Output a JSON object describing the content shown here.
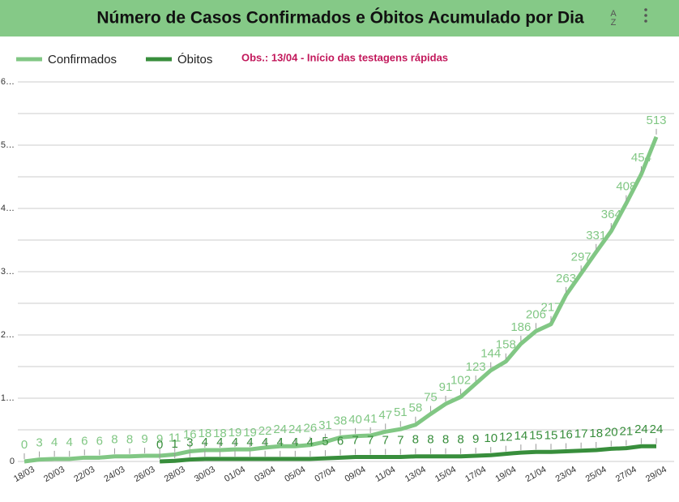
{
  "chart_data": {
    "type": "line",
    "title": "Número de Casos Confirmados e Óbitos Acumulado por Dia",
    "annotation": "Obs.: 13/04 - Início das testagens rápidas",
    "categories": [
      "18/03",
      null,
      "20/03",
      null,
      "22/03",
      null,
      "24/03",
      null,
      "26/03",
      null,
      "28/03",
      null,
      "30/03",
      null,
      "01/04",
      null,
      "03/04",
      null,
      "05/04",
      null,
      "07/04",
      null,
      "09/04",
      null,
      "11/04",
      null,
      "13/04",
      null,
      "15/04",
      null,
      "17/04",
      null,
      "19/04",
      null,
      "21/04",
      null,
      "23/04",
      null,
      "25/04",
      null,
      "27/04",
      null,
      "29/04"
    ],
    "series": [
      {
        "name": "Confirmados",
        "color": "#81c784",
        "values": [
          0,
          3,
          4,
          4,
          6,
          6,
          8,
          8,
          9,
          9,
          11,
          16,
          18,
          18,
          19,
          19,
          22,
          24,
          24,
          26,
          31,
          38,
          40,
          41,
          47,
          51,
          58,
          75,
          91,
          102,
          123,
          144,
          158,
          186,
          206,
          217,
          263,
          297,
          331,
          364,
          408,
          454,
          513
        ]
      },
      {
        "name": "Óbitos",
        "color": "#388e3c",
        "values": [
          null,
          null,
          null,
          null,
          null,
          null,
          null,
          null,
          null,
          0,
          1,
          3,
          4,
          4,
          4,
          4,
          4,
          4,
          4,
          4,
          5,
          6,
          7,
          7,
          7,
          7,
          8,
          8,
          8,
          8,
          9,
          10,
          12,
          14,
          15,
          15,
          16,
          17,
          18,
          20,
          21,
          24,
          24
        ]
      }
    ],
    "ylim": [
      0,
      600
    ],
    "yticks": [
      0,
      {
        "value": 100,
        "label": "1…"
      },
      {
        "value": 200,
        "label": "2…"
      },
      {
        "value": 300,
        "label": "3…"
      },
      {
        "value": 400,
        "label": "4…"
      },
      {
        "value": 500,
        "label": "5…"
      },
      {
        "value": 600,
        "label": "6…"
      }
    ],
    "minor_yticks": [
      50,
      150,
      250,
      350,
      450,
      550
    ],
    "grid": true
  }
}
